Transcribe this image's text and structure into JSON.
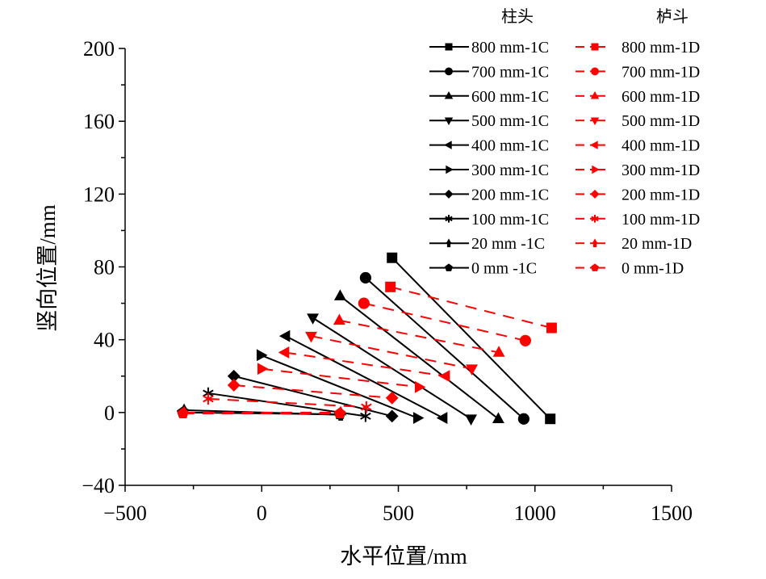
{
  "chart_data": {
    "type": "line",
    "xlabel": "水平位置/mm",
    "ylabel": "竖向位置/mm",
    "xlim": [
      -500,
      1500
    ],
    "ylim": [
      -40,
      200
    ],
    "xticks": [
      -500,
      0,
      500,
      1000,
      1500
    ],
    "yticks": [
      -40,
      0,
      40,
      80,
      120,
      160,
      200
    ],
    "grid": false,
    "legend": {
      "placement": "top-right",
      "column_headers": [
        "柱头",
        "栌斗"
      ]
    },
    "colors": {
      "1C": "#000000",
      "1D": "#ff0000"
    },
    "series": [
      {
        "name": "800 mm-1C",
        "group": "1C",
        "marker": "square",
        "x": [
          477,
          1056
        ],
        "y": [
          85,
          -3.5
        ]
      },
      {
        "name": "700 mm-1C",
        "group": "1C",
        "marker": "circle",
        "x": [
          380,
          959
        ],
        "y": [
          74,
          -3.5
        ]
      },
      {
        "name": "600 mm-1C",
        "group": "1C",
        "marker": "triangle-up",
        "x": [
          287,
          866
        ],
        "y": [
          64,
          -3.5
        ]
      },
      {
        "name": "500 mm-1C",
        "group": "1C",
        "marker": "triangle-down",
        "x": [
          187,
          766
        ],
        "y": [
          52,
          -3.5
        ]
      },
      {
        "name": "400 mm-1C",
        "group": "1C",
        "marker": "triangle-left",
        "x": [
          88,
          664
        ],
        "y": [
          42,
          -3
        ]
      },
      {
        "name": "300 mm-1C",
        "group": "1C",
        "marker": "triangle-right",
        "x": [
          -3,
          570
        ],
        "y": [
          31.5,
          -3
        ]
      },
      {
        "name": "200 mm-1C",
        "group": "1C",
        "marker": "diamond",
        "x": [
          -102,
          477
        ],
        "y": [
          20,
          -2
        ]
      },
      {
        "name": "100 mm-1C",
        "group": "1C",
        "marker": "asterisk",
        "x": [
          -196,
          380
        ],
        "y": [
          10.6,
          -2
        ]
      },
      {
        "name": "20 mm -1C",
        "group": "1C",
        "marker": "pin",
        "x": [
          -284,
          289
        ],
        "y": [
          1.3,
          -1.3
        ]
      },
      {
        "name": "0 mm -1C",
        "group": "1C",
        "marker": "pentagon",
        "x": [
          -290,
          286
        ],
        "y": [
          0,
          -1
        ]
      },
      {
        "name": "800 mm-1D",
        "group": "1D",
        "marker": "square",
        "x": [
          471,
          1061
        ],
        "y": [
          69,
          46.5
        ]
      },
      {
        "name": "700 mm-1D",
        "group": "1D",
        "marker": "circle",
        "x": [
          374,
          965
        ],
        "y": [
          60,
          39.5
        ]
      },
      {
        "name": "600 mm-1D",
        "group": "1D",
        "marker": "triangle-up",
        "x": [
          284,
          868
        ],
        "y": [
          50.6,
          33
        ]
      },
      {
        "name": "500 mm-1D",
        "group": "1D",
        "marker": "triangle-down",
        "x": [
          181,
          769
        ],
        "y": [
          42,
          24
        ]
      },
      {
        "name": "400 mm-1D",
        "group": "1D",
        "marker": "triangle-left",
        "x": [
          85,
          673
        ],
        "y": [
          33,
          20
        ]
      },
      {
        "name": "300 mm-1D",
        "group": "1D",
        "marker": "triangle-right",
        "x": [
          0,
          576
        ],
        "y": [
          24,
          14
        ]
      },
      {
        "name": "200 mm-1D",
        "group": "1D",
        "marker": "diamond",
        "x": [
          -102,
          477
        ],
        "y": [
          15,
          8
        ]
      },
      {
        "name": "100 mm-1D",
        "group": "1D",
        "marker": "asterisk",
        "x": [
          -196,
          383
        ],
        "y": [
          7.5,
          3
        ]
      },
      {
        "name": "20 mm-1D",
        "group": "1D",
        "marker": "pin",
        "x": [
          -284,
          289
        ],
        "y": [
          0,
          0
        ]
      },
      {
        "name": "0 mm-1D",
        "group": "1D",
        "marker": "pentagon",
        "x": [
          -288,
          286
        ],
        "y": [
          -0.5,
          -0.5
        ]
      }
    ]
  }
}
